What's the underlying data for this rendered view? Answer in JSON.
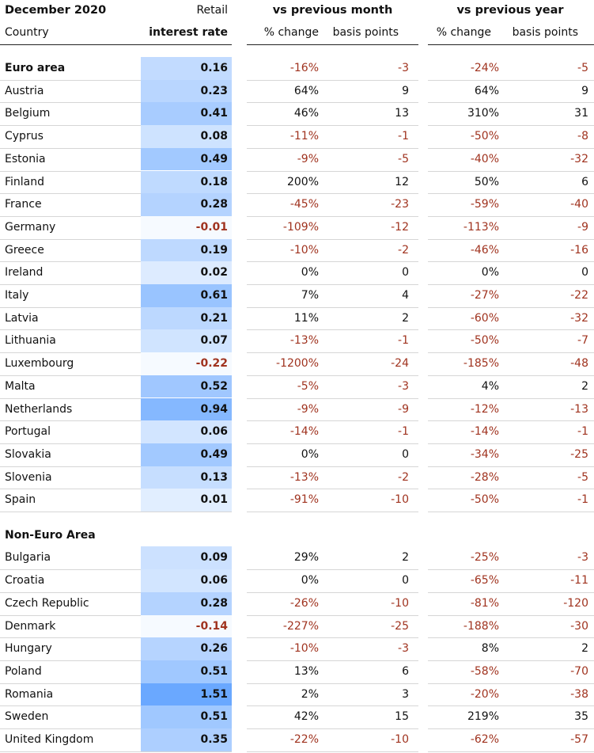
{
  "chart_data": {
    "type": "table",
    "header": {
      "date": "December 2020",
      "country": "Country",
      "rate_top": "Retail",
      "rate_bottom": "interest rate",
      "group_month": "vs previous month",
      "group_year": "vs previous year",
      "pct_change": "% change",
      "basis_points": "basis points"
    },
    "colors": {
      "negative_text": "#a0331f",
      "heat_low": "#f3f8ff",
      "heat_high": "#6aa8ff"
    },
    "sections": [
      {
        "name": "Euro area",
        "rows": [
          {
            "country": "Euro area",
            "rate": "0.16",
            "m_pct": "-16%",
            "m_bp": "-3",
            "y_pct": "-24%",
            "y_bp": "-5",
            "summary": true
          },
          {
            "country": "Austria",
            "rate": "0.23",
            "m_pct": "64%",
            "m_bp": "9",
            "y_pct": "64%",
            "y_bp": "9"
          },
          {
            "country": "Belgium",
            "rate": "0.41",
            "m_pct": "46%",
            "m_bp": "13",
            "y_pct": "310%",
            "y_bp": "31"
          },
          {
            "country": "Cyprus",
            "rate": "0.08",
            "m_pct": "-11%",
            "m_bp": "-1",
            "y_pct": "-50%",
            "y_bp": "-8"
          },
          {
            "country": "Estonia",
            "rate": "0.49",
            "m_pct": "-9%",
            "m_bp": "-5",
            "y_pct": "-40%",
            "y_bp": "-32"
          },
          {
            "country": "Finland",
            "rate": "0.18",
            "m_pct": "200%",
            "m_bp": "12",
            "y_pct": "50%",
            "y_bp": "6"
          },
          {
            "country": "France",
            "rate": "0.28",
            "m_pct": "-45%",
            "m_bp": "-23",
            "y_pct": "-59%",
            "y_bp": "-40"
          },
          {
            "country": "Germany",
            "rate": "-0.01",
            "m_pct": "-109%",
            "m_bp": "-12",
            "y_pct": "-113%",
            "y_bp": "-9"
          },
          {
            "country": "Greece",
            "rate": "0.19",
            "m_pct": "-10%",
            "m_bp": "-2",
            "y_pct": "-46%",
            "y_bp": "-16"
          },
          {
            "country": "Ireland",
            "rate": "0.02",
            "m_pct": "0%",
            "m_bp": "0",
            "y_pct": "0%",
            "y_bp": "0"
          },
          {
            "country": "Italy",
            "rate": "0.61",
            "m_pct": "7%",
            "m_bp": "4",
            "y_pct": "-27%",
            "y_bp": "-22"
          },
          {
            "country": "Latvia",
            "rate": "0.21",
            "m_pct": "11%",
            "m_bp": "2",
            "y_pct": "-60%",
            "y_bp": "-32"
          },
          {
            "country": "Lithuania",
            "rate": "0.07",
            "m_pct": "-13%",
            "m_bp": "-1",
            "y_pct": "-50%",
            "y_bp": "-7"
          },
          {
            "country": "Luxembourg",
            "rate": "-0.22",
            "m_pct": "-1200%",
            "m_bp": "-24",
            "y_pct": "-185%",
            "y_bp": "-48"
          },
          {
            "country": "Malta",
            "rate": "0.52",
            "m_pct": "-5%",
            "m_bp": "-3",
            "y_pct": "4%",
            "y_bp": "2"
          },
          {
            "country": "Netherlands",
            "rate": "0.94",
            "m_pct": "-9%",
            "m_bp": "-9",
            "y_pct": "-12%",
            "y_bp": "-13"
          },
          {
            "country": "Portugal",
            "rate": "0.06",
            "m_pct": "-14%",
            "m_bp": "-1",
            "y_pct": "-14%",
            "y_bp": "-1"
          },
          {
            "country": "Slovakia",
            "rate": "0.49",
            "m_pct": "0%",
            "m_bp": "0",
            "y_pct": "-34%",
            "y_bp": "-25"
          },
          {
            "country": "Slovenia",
            "rate": "0.13",
            "m_pct": "-13%",
            "m_bp": "-2",
            "y_pct": "-28%",
            "y_bp": "-5"
          },
          {
            "country": "Spain",
            "rate": "0.01",
            "m_pct": "-91%",
            "m_bp": "-10",
            "y_pct": "-50%",
            "y_bp": "-1"
          }
        ]
      },
      {
        "name": "Non-Euro Area",
        "rows": [
          {
            "country": "Bulgaria",
            "rate": "0.09",
            "m_pct": "29%",
            "m_bp": "2",
            "y_pct": "-25%",
            "y_bp": "-3"
          },
          {
            "country": "Croatia",
            "rate": "0.06",
            "m_pct": "0%",
            "m_bp": "0",
            "y_pct": "-65%",
            "y_bp": "-11"
          },
          {
            "country": "Czech Republic",
            "rate": "0.28",
            "m_pct": "-26%",
            "m_bp": "-10",
            "y_pct": "-81%",
            "y_bp": "-120"
          },
          {
            "country": "Denmark",
            "rate": "-0.14",
            "m_pct": "-227%",
            "m_bp": "-25",
            "y_pct": "-188%",
            "y_bp": "-30"
          },
          {
            "country": "Hungary",
            "rate": "0.26",
            "m_pct": "-10%",
            "m_bp": "-3",
            "y_pct": "8%",
            "y_bp": "2"
          },
          {
            "country": "Poland",
            "rate": "0.51",
            "m_pct": "13%",
            "m_bp": "6",
            "y_pct": "-58%",
            "y_bp": "-70"
          },
          {
            "country": "Romania",
            "rate": "1.51",
            "m_pct": "2%",
            "m_bp": "3",
            "y_pct": "-20%",
            "y_bp": "-38"
          },
          {
            "country": "Sweden",
            "rate": "0.51",
            "m_pct": "42%",
            "m_bp": "15",
            "y_pct": "219%",
            "y_bp": "35"
          },
          {
            "country": "United Kingdom",
            "rate": "0.35",
            "m_pct": "-22%",
            "m_bp": "-10",
            "y_pct": "-62%",
            "y_bp": "-57"
          }
        ]
      }
    ]
  }
}
